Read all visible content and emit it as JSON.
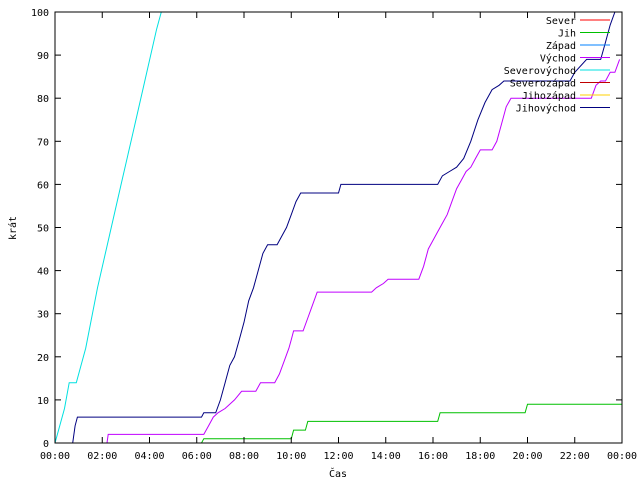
{
  "chart_data": {
    "type": "line",
    "xlabel": "Čas",
    "ylabel": "krát",
    "xlim": [
      0,
      24
    ],
    "ylim": [
      0,
      100
    ],
    "x_ticks": [
      {
        "value": 0,
        "label": "00:00"
      },
      {
        "value": 2,
        "label": "02:00"
      },
      {
        "value": 4,
        "label": "04:00"
      },
      {
        "value": 6,
        "label": "06:00"
      },
      {
        "value": 8,
        "label": "08:00"
      },
      {
        "value": 10,
        "label": "10:00"
      },
      {
        "value": 12,
        "label": "12:00"
      },
      {
        "value": 14,
        "label": "14:00"
      },
      {
        "value": 16,
        "label": "16:00"
      },
      {
        "value": 18,
        "label": "18:00"
      },
      {
        "value": 20,
        "label": "20:00"
      },
      {
        "value": 22,
        "label": "22:00"
      },
      {
        "value": 24,
        "label": "00:00"
      }
    ],
    "y_ticks": [
      {
        "value": 0,
        "label": "0"
      },
      {
        "value": 10,
        "label": "10"
      },
      {
        "value": 20,
        "label": "20"
      },
      {
        "value": 30,
        "label": "30"
      },
      {
        "value": 40,
        "label": "40"
      },
      {
        "value": 50,
        "label": "50"
      },
      {
        "value": 60,
        "label": "60"
      },
      {
        "value": 70,
        "label": "70"
      },
      {
        "value": 80,
        "label": "80"
      },
      {
        "value": 90,
        "label": "90"
      },
      {
        "value": 100,
        "label": "100"
      }
    ],
    "legend_position": "top-right",
    "grid": false,
    "series": [
      {
        "name": "Sever",
        "color": "#ff0000",
        "points": []
      },
      {
        "name": "Jih",
        "color": "#00c000",
        "points": [
          [
            0,
            0
          ],
          [
            6.2,
            0
          ],
          [
            6.3,
            1
          ],
          [
            10.0,
            1
          ],
          [
            10.1,
            3
          ],
          [
            10.6,
            3
          ],
          [
            10.7,
            5
          ],
          [
            16.2,
            5
          ],
          [
            16.3,
            7
          ],
          [
            19.9,
            7
          ],
          [
            20.0,
            9
          ],
          [
            24,
            9
          ]
        ]
      },
      {
        "name": "Západ",
        "color": "#0080ff",
        "points": []
      },
      {
        "name": "Východ",
        "color": "#c000ff",
        "points": [
          [
            0,
            0
          ],
          [
            2.2,
            0
          ],
          [
            2.25,
            2
          ],
          [
            6.3,
            2
          ],
          [
            6.5,
            4
          ],
          [
            6.7,
            6
          ],
          [
            6.9,
            7
          ],
          [
            7.2,
            8
          ],
          [
            7.6,
            10
          ],
          [
            7.9,
            12
          ],
          [
            8.5,
            12
          ],
          [
            8.7,
            14
          ],
          [
            9.3,
            14
          ],
          [
            9.5,
            16
          ],
          [
            9.7,
            19
          ],
          [
            9.9,
            22
          ],
          [
            10.0,
            24
          ],
          [
            10.1,
            26
          ],
          [
            10.5,
            26
          ],
          [
            10.7,
            29
          ],
          [
            10.9,
            32
          ],
          [
            11.1,
            35
          ],
          [
            13.4,
            35
          ],
          [
            13.6,
            36
          ],
          [
            13.9,
            37
          ],
          [
            14.1,
            38
          ],
          [
            15.4,
            38
          ],
          [
            15.6,
            41
          ],
          [
            15.8,
            45
          ],
          [
            16.0,
            47
          ],
          [
            16.2,
            49
          ],
          [
            16.4,
            51
          ],
          [
            16.6,
            53
          ],
          [
            16.8,
            56
          ],
          [
            17.0,
            59
          ],
          [
            17.2,
            61
          ],
          [
            17.4,
            63
          ],
          [
            17.6,
            64
          ],
          [
            17.8,
            66
          ],
          [
            18.0,
            68
          ],
          [
            18.5,
            68
          ],
          [
            18.7,
            70
          ],
          [
            18.9,
            74
          ],
          [
            19.1,
            78
          ],
          [
            19.3,
            80
          ],
          [
            22.7,
            80
          ],
          [
            22.9,
            83
          ],
          [
            23.1,
            84
          ],
          [
            23.3,
            84
          ],
          [
            23.5,
            86
          ],
          [
            23.7,
            86
          ],
          [
            23.9,
            89
          ]
        ]
      },
      {
        "name": "Severovýchod",
        "color": "#00e0e0",
        "points": [
          [
            0,
            0
          ],
          [
            0.4,
            8
          ],
          [
            0.6,
            14
          ],
          [
            0.9,
            14
          ],
          [
            1.3,
            22
          ],
          [
            1.8,
            36
          ],
          [
            2.3,
            48
          ],
          [
            2.8,
            60
          ],
          [
            3.3,
            72
          ],
          [
            3.8,
            84
          ],
          [
            4.3,
            96
          ],
          [
            4.5,
            100
          ]
        ]
      },
      {
        "name": "Severozápad",
        "color": "#c00000",
        "points": []
      },
      {
        "name": "Jihozápad",
        "color": "#ffd000",
        "points": []
      },
      {
        "name": "Jihovýchod",
        "color": "#000080",
        "points": [
          [
            0,
            0
          ],
          [
            0.75,
            0
          ],
          [
            0.85,
            4
          ],
          [
            0.95,
            6
          ],
          [
            6.2,
            6
          ],
          [
            6.3,
            7
          ],
          [
            6.8,
            7
          ],
          [
            7.0,
            10
          ],
          [
            7.2,
            14
          ],
          [
            7.4,
            18
          ],
          [
            7.6,
            20
          ],
          [
            7.8,
            24
          ],
          [
            8.0,
            28
          ],
          [
            8.2,
            33
          ],
          [
            8.4,
            36
          ],
          [
            8.6,
            40
          ],
          [
            8.8,
            44
          ],
          [
            9.0,
            46
          ],
          [
            9.4,
            46
          ],
          [
            9.6,
            48
          ],
          [
            9.8,
            50
          ],
          [
            10.0,
            53
          ],
          [
            10.2,
            56
          ],
          [
            10.4,
            58
          ],
          [
            12.0,
            58
          ],
          [
            12.1,
            60
          ],
          [
            16.2,
            60
          ],
          [
            16.4,
            62
          ],
          [
            16.7,
            63
          ],
          [
            17.0,
            64
          ],
          [
            17.3,
            66
          ],
          [
            17.6,
            70
          ],
          [
            17.9,
            75
          ],
          [
            18.2,
            79
          ],
          [
            18.5,
            82
          ],
          [
            18.8,
            83
          ],
          [
            19.0,
            84
          ],
          [
            21.8,
            84
          ],
          [
            22.0,
            86
          ],
          [
            22.5,
            89
          ],
          [
            23.1,
            89
          ],
          [
            23.3,
            93
          ],
          [
            23.5,
            97
          ],
          [
            23.7,
            100
          ]
        ]
      }
    ]
  }
}
